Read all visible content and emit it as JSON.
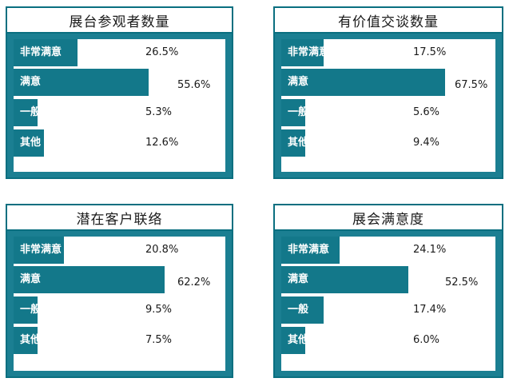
{
  "chart_data": [
    {
      "type": "bar",
      "title": "展台参观者数量",
      "categories": [
        "非常满意",
        "满意",
        "一般",
        "其他"
      ],
      "values": [
        26.5,
        55.6,
        5.3,
        12.6
      ],
      "value_labels": [
        "26.5%",
        "55.6%",
        "5.3%",
        "12.6%"
      ],
      "orientation": "horizontal"
    },
    {
      "type": "bar",
      "title": "有价值交谈数量",
      "categories": [
        "非常满意",
        "满意",
        "一般",
        "其他"
      ],
      "values": [
        17.5,
        67.5,
        5.6,
        9.4
      ],
      "value_labels": [
        "17.5%",
        "67.5%",
        "5.6%",
        "9.4%"
      ],
      "orientation": "horizontal"
    },
    {
      "type": "bar",
      "title": "潜在客户联络",
      "categories": [
        "非常满意",
        "满意",
        "一般",
        "其他"
      ],
      "values": [
        20.8,
        62.2,
        9.5,
        7.5
      ],
      "value_labels": [
        "20.8%",
        "62.2%",
        "9.5%",
        "7.5%"
      ],
      "orientation": "horizontal"
    },
    {
      "type": "bar",
      "title": "展会满意度",
      "categories": [
        "非常满意",
        "满意",
        "一般",
        "其他"
      ],
      "values": [
        24.1,
        52.5,
        17.4,
        6.0
      ],
      "value_labels": [
        "24.1%",
        "52.5%",
        "17.4%",
        "6.0%"
      ],
      "orientation": "horizontal"
    }
  ],
  "colors": {
    "bar": "#13788a",
    "frame": "#0a6f80",
    "frame_fill": "#1b7f92",
    "background": "#ffffff"
  }
}
